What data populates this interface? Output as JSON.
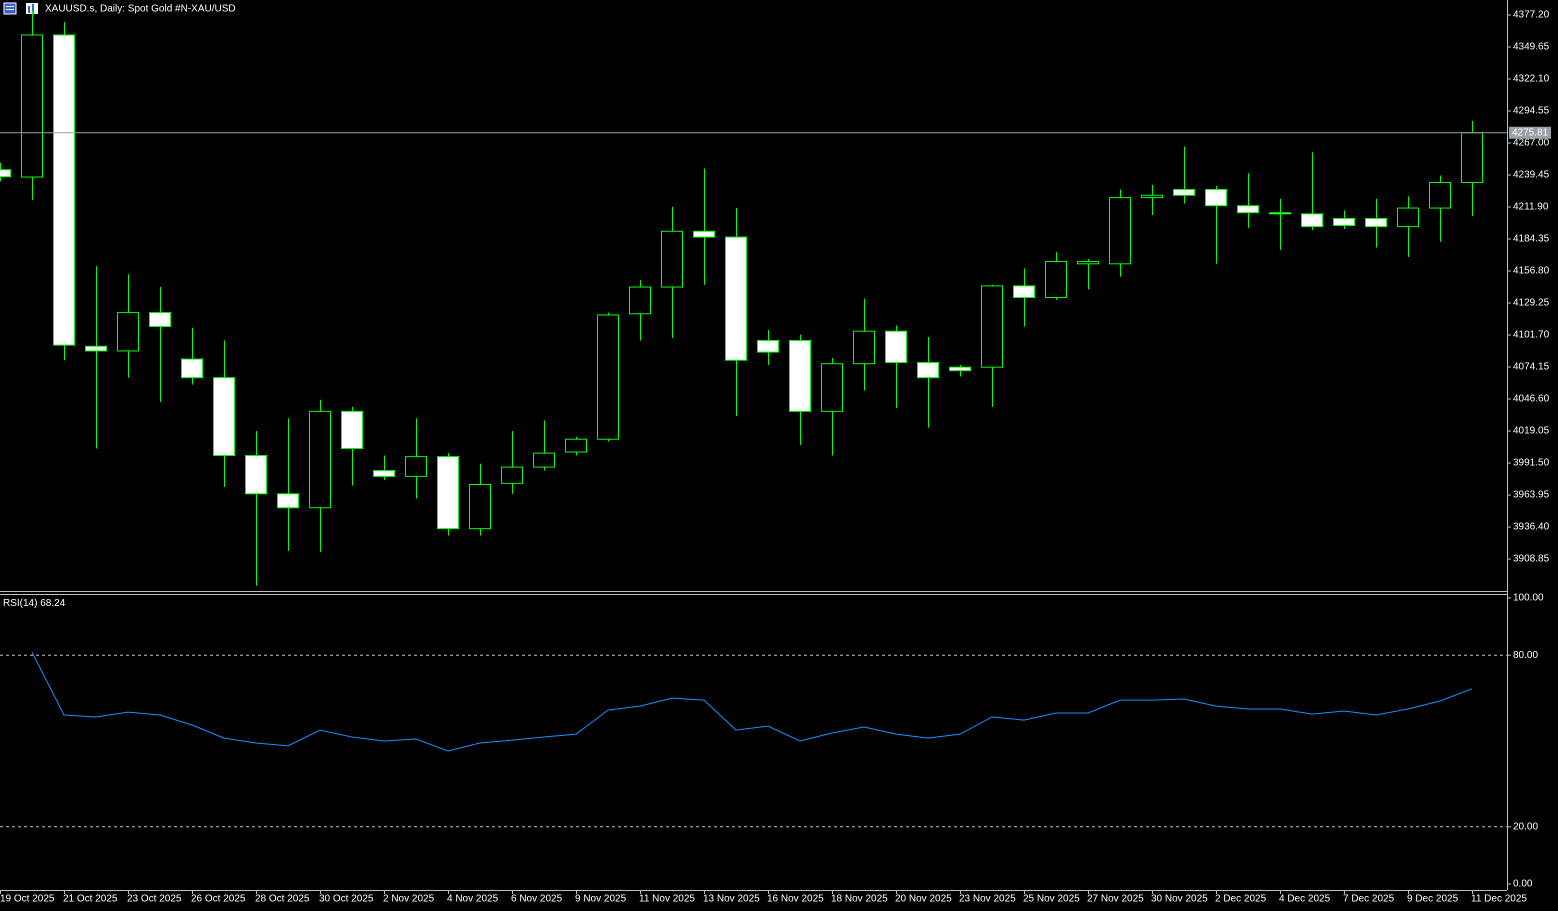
{
  "chart_data": [
    {
      "type": "candlestick",
      "title": "XAUUSD.s, Daily:  Spot Gold #N-XAU/USD",
      "categories": [
        "19 Oct 2025",
        null,
        "21 Oct 2025",
        null,
        "23 Oct 2025",
        null,
        "26 Oct 2025",
        null,
        "28 Oct 2025",
        null,
        "30 Oct 2025",
        null,
        "2 Nov 2025",
        null,
        "4 Nov 2025",
        null,
        "6 Nov 2025",
        null,
        "9 Nov 2025",
        null,
        "11 Nov 2025",
        null,
        "13 Nov 2025",
        null,
        "16 Nov 2025",
        null,
        "18 Nov 2025",
        null,
        "20 Nov 2025",
        null,
        "23 Nov 2025",
        null,
        "25 Nov 2025",
        null,
        "27 Nov 2025",
        null,
        "30 Nov 2025",
        null,
        "2 Dec 2025",
        null,
        "4 Dec 2025",
        null,
        "7 Dec 2025",
        null,
        "9 Dec 2025",
        null,
        "11 Dec 2025"
      ],
      "open": [
        4244,
        4237.7,
        4360,
        4092,
        4088,
        4121,
        4081,
        4065,
        3998,
        3965,
        3953,
        4036,
        3985,
        3980,
        3997,
        3935,
        3974,
        3988,
        4001,
        4012,
        4120,
        4143,
        4191,
        4186,
        4097,
        4097,
        4036,
        4077,
        4105,
        4078,
        4074,
        4074,
        4144,
        4134,
        4163,
        4163,
        4220,
        4227,
        4227,
        4213,
        4207,
        4206,
        4202,
        4202,
        4195,
        4211,
        4233
      ],
      "high": [
        4250,
        4381,
        4371,
        4161,
        4154,
        4143,
        4108,
        4097,
        4019,
        4030,
        4046,
        4040,
        3998,
        4030,
        4000,
        3991,
        4019,
        4028,
        4014,
        4121,
        4149,
        4212,
        4245,
        4211,
        4106,
        4102,
        4082,
        4133,
        4110,
        4100,
        4076,
        4145,
        4159,
        4173,
        4167,
        4227,
        4231,
        4264,
        4230,
        4241,
        4219,
        4259,
        4209,
        4219,
        4221,
        4239,
        4286
      ],
      "low": [
        4234,
        4218,
        4080,
        4004,
        4065,
        4044,
        4059,
        3971,
        3886,
        3916,
        3915,
        3972,
        3977,
        3961,
        3929,
        3929,
        3965,
        3985,
        3998,
        4010,
        4097,
        4099,
        4145,
        4032,
        4076,
        4007,
        3998,
        4054,
        4039,
        4022,
        4066,
        4040,
        4109,
        4132,
        4141,
        4152,
        4205,
        4215,
        4163,
        4194,
        4175,
        4192,
        4193,
        4177,
        4169,
        4182,
        4204
      ],
      "close": [
        4238,
        4360,
        4093,
        4088,
        4121,
        4109,
        4065,
        3998,
        3965,
        3953,
        4036,
        4004,
        3980,
        3997,
        3935,
        3973,
        3988,
        4000,
        4012,
        4119,
        4143,
        4191,
        4186,
        4080,
        4087,
        4036,
        4077,
        4105,
        4078,
        4065,
        4071,
        4144,
        4134,
        4165,
        4165,
        4220,
        4222,
        4222,
        4213,
        4207,
        4206,
        4195,
        4196,
        4195,
        4211,
        4233,
        4275.81
      ],
      "up_color": "#000000",
      "down_color": "#ffffff",
      "wick_color": "#00ff00",
      "ylim": [
        3882.2,
        4390.1
      ],
      "yticks": [
        {
          "value": 4377.2,
          "label": "4377.20"
        },
        4349.65,
        {
          "value": 4322.1,
          "label": "4322.10"
        },
        4294.55,
        {
          "value": 4267,
          "label": "4267.00"
        },
        4239.45,
        {
          "value": 4211.9,
          "label": "4211.90"
        },
        4184.35,
        {
          "value": 4156.8,
          "label": "4156.80"
        },
        4129.25,
        {
          "value": 4101.7,
          "label": "4101.70"
        },
        4074.15,
        {
          "value": 4046.6,
          "label": "4046.60"
        },
        4019.05,
        {
          "value": 3991.5,
          "label": "3991.50"
        },
        3963.95,
        {
          "value": 3936.4,
          "label": "3936.40"
        },
        3908.85
      ],
      "grid": false
    },
    {
      "type": "line",
      "title": "RSI(14)",
      "series": [
        {
          "name": "RSI(14)",
          "color": "#1e90ff",
          "values": [
            null,
            81.1,
            59.1,
            58.4,
            60.1,
            59.1,
            55.6,
            51.0,
            49.3,
            48.3,
            53.8,
            51.4,
            50.0,
            50.7,
            46.5,
            49.3,
            50.3,
            51.4,
            52.4,
            60.8,
            62.2,
            65.0,
            64.3,
            53.8,
            55.2,
            50.0,
            52.8,
            54.9,
            52.4,
            51.0,
            52.4,
            58.4,
            57.3,
            59.8,
            59.8,
            64.3,
            64.3,
            64.7,
            62.2,
            61.2,
            61.2,
            59.4,
            60.5,
            59.1,
            61.2,
            64.0,
            68.24
          ]
        }
      ],
      "ylim": [
        0,
        100
      ],
      "yticks": [
        {
          "value": 100,
          "label": "100.00"
        },
        {
          "value": 80,
          "label": "80.00"
        },
        {
          "value": 20,
          "label": "20.00"
        },
        {
          "value": 0,
          "label": "0.00"
        }
      ],
      "grid": true
    }
  ]
}
